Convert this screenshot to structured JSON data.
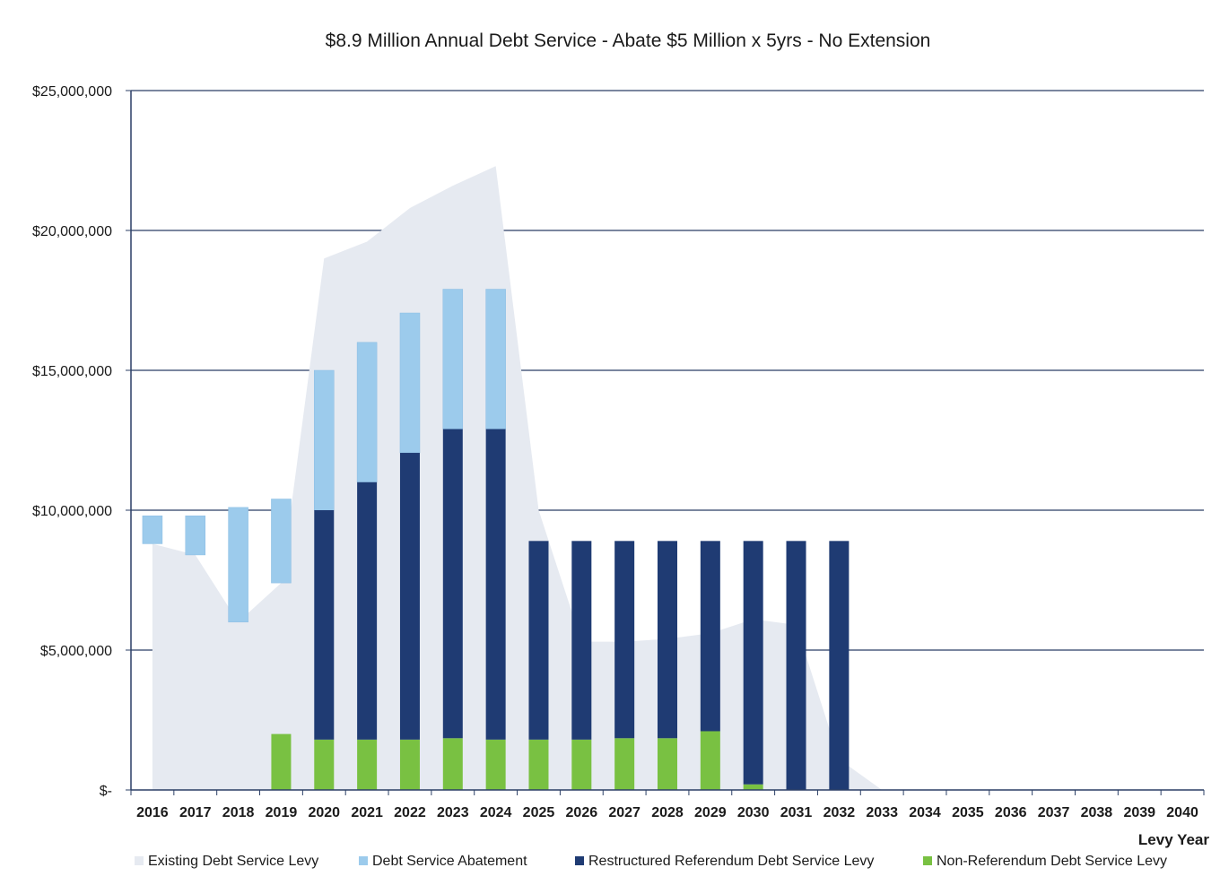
{
  "chart_data": {
    "type": "bar",
    "title": "$8.9 Million Annual Debt Service - Abate $5 Million x 5yrs - No Extension",
    "xlabel": "Levy Year",
    "ylabel": "",
    "ylim": [
      0,
      25000000
    ],
    "yticks": [
      {
        "value": 0,
        "label": "$-"
      },
      {
        "value": 5000000,
        "label": "$5,000,000"
      },
      {
        "value": 10000000,
        "label": "$10,000,000"
      },
      {
        "value": 15000000,
        "label": "$15,000,000"
      },
      {
        "value": 20000000,
        "label": "$20,000,000"
      },
      {
        "value": 25000000,
        "label": "$25,000,000"
      }
    ],
    "grid": true,
    "legend_position": "bottom",
    "categories": [
      "2016",
      "2017",
      "2018",
      "2019",
      "2020",
      "2021",
      "2022",
      "2023",
      "2024",
      "2025",
      "2026",
      "2027",
      "2028",
      "2029",
      "2030",
      "2031",
      "2032",
      "2033",
      "2034",
      "2035",
      "2036",
      "2037",
      "2038",
      "2039",
      "2040"
    ],
    "area_series": {
      "name": "Existing Debt Service Levy",
      "color": "#e6eaf1",
      "values": [
        8800000,
        8400000,
        6000000,
        7400000,
        19000000,
        19600000,
        20800000,
        21600000,
        22300000,
        10000000,
        5300000,
        5300000,
        5400000,
        5600000,
        6100000,
        5900000,
        1100000,
        0,
        0,
        0,
        0,
        0,
        0,
        0,
        0
      ]
    },
    "stacked_series": [
      {
        "name": "Non-Referendum Debt Service Levy",
        "color": "#79c142",
        "values": [
          0,
          0,
          0,
          2000000,
          1800000,
          1800000,
          1800000,
          1850000,
          1800000,
          1800000,
          1800000,
          1850000,
          1850000,
          2100000,
          200000,
          0,
          0,
          0,
          0,
          0,
          0,
          0,
          0,
          0,
          0
        ]
      },
      {
        "name": "Restructured Referendum Debt Service Levy",
        "color": "#1f3b73",
        "values": [
          0,
          0,
          0,
          0,
          8200000,
          9200000,
          10250000,
          11050000,
          11100000,
          7100000,
          7100000,
          7050000,
          7050000,
          6800000,
          8700000,
          8900000,
          8900000,
          0,
          0,
          0,
          0,
          0,
          0,
          0,
          0
        ]
      }
    ],
    "floating_series": {
      "name": "Debt Service Abatement",
      "color": "#9ccbec",
      "values": [
        [
          8800000,
          9800000
        ],
        [
          8400000,
          9800000
        ],
        [
          6000000,
          10100000
        ],
        [
          7400000,
          10400000
        ],
        [
          10000000,
          15000000
        ],
        [
          11000000,
          16000000
        ],
        [
          12050000,
          17050000
        ],
        [
          12900000,
          17900000
        ],
        [
          12900000,
          17900000
        ],
        null,
        null,
        null,
        null,
        null,
        null,
        null,
        null,
        null,
        null,
        null,
        null,
        null,
        null,
        null,
        null
      ]
    },
    "legend": [
      {
        "name": "Existing Debt Service Levy",
        "color": "#e6eaf1"
      },
      {
        "name": "Debt Service Abatement",
        "color": "#9ccbec"
      },
      {
        "name": "Restructured Referendum Debt Service Levy",
        "color": "#1f3b73"
      },
      {
        "name": "Non-Referendum Debt Service Levy",
        "color": "#79c142"
      }
    ]
  }
}
